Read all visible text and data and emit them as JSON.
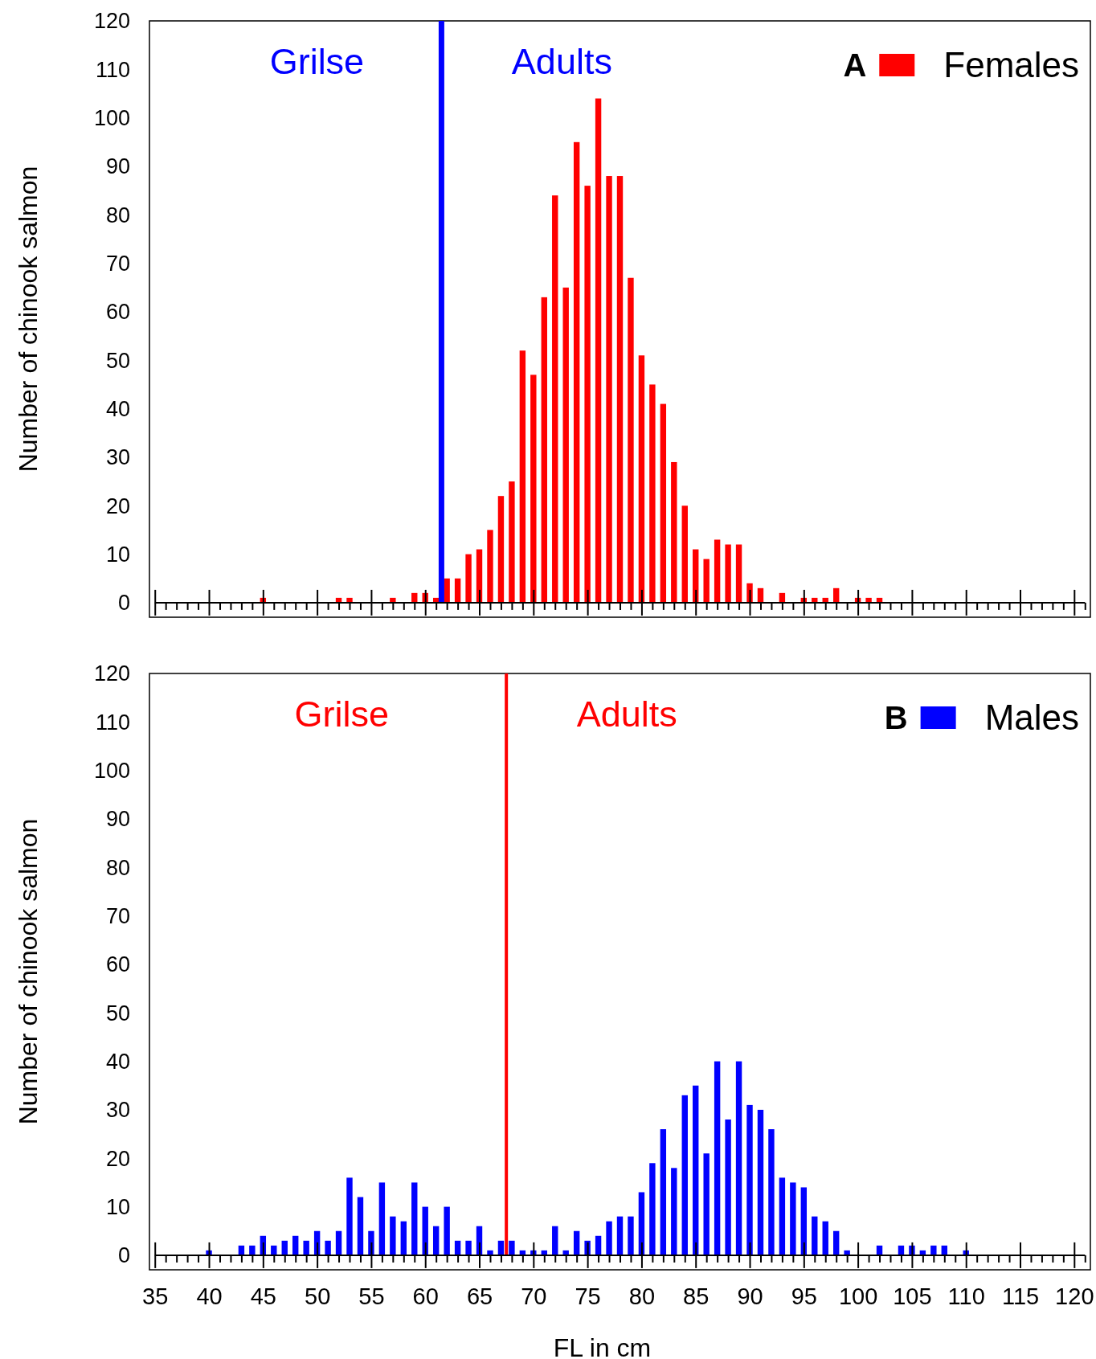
{
  "chart_data": [
    {
      "type": "bar",
      "title": "A",
      "ylabel": "Number of chinook salmon",
      "legend": "top right",
      "tick_labels": "y",
      "series": [
        {
          "name": "Females",
          "color": "#ff0000",
          "x": [
            45,
            52,
            53,
            57,
            59,
            60,
            61,
            62,
            63,
            64,
            65,
            66,
            67,
            68,
            69,
            70,
            71,
            72,
            73,
            74,
            75,
            76,
            77,
            78,
            79,
            80,
            81,
            82,
            83,
            84,
            85,
            86,
            87,
            88,
            89,
            90,
            91,
            93,
            95,
            96,
            97,
            98,
            100,
            101,
            102
          ],
          "values": [
            1,
            1,
            1,
            1,
            2,
            2,
            1,
            5,
            5,
            10,
            11,
            15,
            22,
            25,
            52,
            47,
            63,
            84,
            65,
            95,
            86,
            104,
            88,
            88,
            67,
            51,
            45,
            41,
            29,
            20,
            11,
            9,
            13,
            12,
            12,
            4,
            3,
            2,
            1,
            1,
            1,
            3,
            1,
            1,
            1
          ]
        }
      ],
      "xlim": [
        34.5,
        121.5
      ],
      "ylim": [
        -3,
        120
      ],
      "xticks": [
        35,
        {
          "value": 36,
          "label": null
        },
        {
          "value": 37,
          "label": null
        },
        {
          "value": 38,
          "label": null
        },
        {
          "value": 39,
          "label": null
        },
        40,
        {
          "value": 41,
          "label": null
        },
        {
          "value": 42,
          "label": null
        },
        {
          "value": 43,
          "label": null
        },
        {
          "value": 44,
          "label": null
        },
        45,
        {
          "value": 46,
          "label": null
        },
        {
          "value": 47,
          "label": null
        },
        {
          "value": 48,
          "label": null
        },
        {
          "value": 49,
          "label": null
        },
        50,
        {
          "value": 51,
          "label": null
        },
        {
          "value": 52,
          "label": null
        },
        {
          "value": 53,
          "label": null
        },
        {
          "value": 54,
          "label": null
        },
        55,
        {
          "value": 56,
          "label": null
        },
        {
          "value": 57,
          "label": null
        },
        {
          "value": 58,
          "label": null
        },
        {
          "value": 59,
          "label": null
        },
        60,
        {
          "value": 61,
          "label": null
        },
        {
          "value": 62,
          "label": null
        },
        {
          "value": 63,
          "label": null
        },
        {
          "value": 64,
          "label": null
        },
        65,
        {
          "value": 66,
          "label": null
        },
        {
          "value": 67,
          "label": null
        },
        {
          "value": 68,
          "label": null
        },
        {
          "value": 69,
          "label": null
        },
        70,
        {
          "value": 71,
          "label": null
        },
        {
          "value": 72,
          "label": null
        },
        {
          "value": 73,
          "label": null
        },
        {
          "value": 74,
          "label": null
        },
        75,
        {
          "value": 76,
          "label": null
        },
        {
          "value": 77,
          "label": null
        },
        {
          "value": 78,
          "label": null
        },
        {
          "value": 79,
          "label": null
        },
        80,
        {
          "value": 81,
          "label": null
        },
        {
          "value": 82,
          "label": null
        },
        {
          "value": 83,
          "label": null
        },
        {
          "value": 84,
          "label": null
        },
        85,
        {
          "value": 86,
          "label": null
        },
        {
          "value": 87,
          "label": null
        },
        {
          "value": 88,
          "label": null
        },
        {
          "value": 89,
          "label": null
        },
        90,
        {
          "value": 91,
          "label": null
        },
        {
          "value": 92,
          "label": null
        },
        {
          "value": 93,
          "label": null
        },
        {
          "value": 94,
          "label": null
        },
        95,
        {
          "value": 96,
          "label": null
        },
        {
          "value": 97,
          "label": null
        },
        {
          "value": 98,
          "label": null
        },
        {
          "value": 99,
          "label": null
        },
        100,
        {
          "value": 101,
          "label": null
        },
        {
          "value": 102,
          "label": null
        },
        {
          "value": 103,
          "label": null
        },
        {
          "value": 104,
          "label": null
        },
        105,
        {
          "value": 106,
          "label": null
        },
        {
          "value": 107,
          "label": null
        },
        {
          "value": 108,
          "label": null
        },
        {
          "value": 109,
          "label": null
        },
        110,
        {
          "value": 111,
          "label": null
        },
        {
          "value": 112,
          "label": null
        },
        {
          "value": 113,
          "label": null
        },
        {
          "value": 114,
          "label": null
        },
        115,
        {
          "value": 116,
          "label": null
        },
        {
          "value": 117,
          "label": null
        },
        {
          "value": 118,
          "label": null
        },
        {
          "value": 119,
          "label": null
        },
        120,
        {
          "value": 121,
          "label": null
        }
      ],
      "yticks": [
        0,
        10,
        20,
        30,
        40,
        50,
        60,
        70,
        80,
        90,
        100,
        110,
        120
      ],
      "ref_lines": [
        {
          "axis": "x",
          "value": 61.5,
          "color": "#0000ff"
        }
      ],
      "annotations": [
        "Grilse",
        "Adults"
      ]
    },
    {
      "type": "bar",
      "title": "B",
      "xlabel": "FL in cm",
      "ylabel": "Number of chinook salmon",
      "legend": "top right",
      "series": [
        {
          "name": "Males",
          "color": "#0000ff",
          "x": [
            40,
            43,
            44,
            45,
            46,
            47,
            48,
            49,
            50,
            51,
            52,
            53,
            54,
            55,
            56,
            57,
            58,
            59,
            60,
            61,
            62,
            63,
            64,
            65,
            66,
            67,
            68,
            69,
            70,
            71,
            72,
            73,
            74,
            75,
            76,
            77,
            78,
            79,
            80,
            81,
            82,
            83,
            84,
            85,
            86,
            87,
            88,
            89,
            90,
            91,
            92,
            93,
            94,
            95,
            96,
            97,
            98,
            99,
            102,
            104,
            105,
            106,
            107,
            108,
            110
          ],
          "values": [
            1,
            2,
            2,
            4,
            2,
            3,
            4,
            3,
            5,
            3,
            5,
            16,
            12,
            5,
            15,
            8,
            7,
            15,
            10,
            6,
            10,
            3,
            3,
            6,
            1,
            3,
            3,
            1,
            1,
            1,
            6,
            1,
            5,
            3,
            4,
            7,
            8,
            8,
            13,
            19,
            26,
            18,
            33,
            35,
            21,
            40,
            28,
            40,
            31,
            30,
            26,
            16,
            15,
            14,
            8,
            7,
            5,
            1,
            2,
            2,
            2,
            1,
            2,
            2,
            1
          ]
        }
      ],
      "xlim": [
        34.5,
        121.5
      ],
      "ylim": [
        -3,
        120
      ],
      "xticks": [
        35,
        {
          "value": 36,
          "label": null
        },
        {
          "value": 37,
          "label": null
        },
        {
          "value": 38,
          "label": null
        },
        {
          "value": 39,
          "label": null
        },
        40,
        {
          "value": 41,
          "label": null
        },
        {
          "value": 42,
          "label": null
        },
        {
          "value": 43,
          "label": null
        },
        {
          "value": 44,
          "label": null
        },
        45,
        {
          "value": 46,
          "label": null
        },
        {
          "value": 47,
          "label": null
        },
        {
          "value": 48,
          "label": null
        },
        {
          "value": 49,
          "label": null
        },
        50,
        {
          "value": 51,
          "label": null
        },
        {
          "value": 52,
          "label": null
        },
        {
          "value": 53,
          "label": null
        },
        {
          "value": 54,
          "label": null
        },
        55,
        {
          "value": 56,
          "label": null
        },
        {
          "value": 57,
          "label": null
        },
        {
          "value": 58,
          "label": null
        },
        {
          "value": 59,
          "label": null
        },
        60,
        {
          "value": 61,
          "label": null
        },
        {
          "value": 62,
          "label": null
        },
        {
          "value": 63,
          "label": null
        },
        {
          "value": 64,
          "label": null
        },
        65,
        {
          "value": 66,
          "label": null
        },
        {
          "value": 67,
          "label": null
        },
        {
          "value": 68,
          "label": null
        },
        {
          "value": 69,
          "label": null
        },
        70,
        {
          "value": 71,
          "label": null
        },
        {
          "value": 72,
          "label": null
        },
        {
          "value": 73,
          "label": null
        },
        {
          "value": 74,
          "label": null
        },
        75,
        {
          "value": 76,
          "label": null
        },
        {
          "value": 77,
          "label": null
        },
        {
          "value": 78,
          "label": null
        },
        {
          "value": 79,
          "label": null
        },
        80,
        {
          "value": 81,
          "label": null
        },
        {
          "value": 82,
          "label": null
        },
        {
          "value": 83,
          "label": null
        },
        {
          "value": 84,
          "label": null
        },
        85,
        {
          "value": 86,
          "label": null
        },
        {
          "value": 87,
          "label": null
        },
        {
          "value": 88,
          "label": null
        },
        {
          "value": 89,
          "label": null
        },
        90,
        {
          "value": 91,
          "label": null
        },
        {
          "value": 92,
          "label": null
        },
        {
          "value": 93,
          "label": null
        },
        {
          "value": 94,
          "label": null
        },
        95,
        {
          "value": 96,
          "label": null
        },
        {
          "value": 97,
          "label": null
        },
        {
          "value": 98,
          "label": null
        },
        {
          "value": 99,
          "label": null
        },
        100,
        {
          "value": 101,
          "label": null
        },
        {
          "value": 102,
          "label": null
        },
        {
          "value": 103,
          "label": null
        },
        {
          "value": 104,
          "label": null
        },
        105,
        {
          "value": 106,
          "label": null
        },
        {
          "value": 107,
          "label": null
        },
        {
          "value": 108,
          "label": null
        },
        {
          "value": 109,
          "label": null
        },
        110,
        {
          "value": 111,
          "label": null
        },
        {
          "value": 112,
          "label": null
        },
        {
          "value": 113,
          "label": null
        },
        {
          "value": 114,
          "label": null
        },
        115,
        {
          "value": 116,
          "label": null
        },
        {
          "value": 117,
          "label": null
        },
        {
          "value": 118,
          "label": null
        },
        {
          "value": 119,
          "label": null
        },
        120,
        {
          "value": 121,
          "label": null
        }
      ],
      "yticks": [
        0,
        10,
        20,
        30,
        40,
        50,
        60,
        70,
        80,
        90,
        100,
        110,
        120
      ],
      "ref_lines": [
        {
          "axis": "x",
          "value": 67.5,
          "color": "#ff0000"
        }
      ],
      "annotations": [
        "Grilse",
        "Adults"
      ]
    }
  ]
}
